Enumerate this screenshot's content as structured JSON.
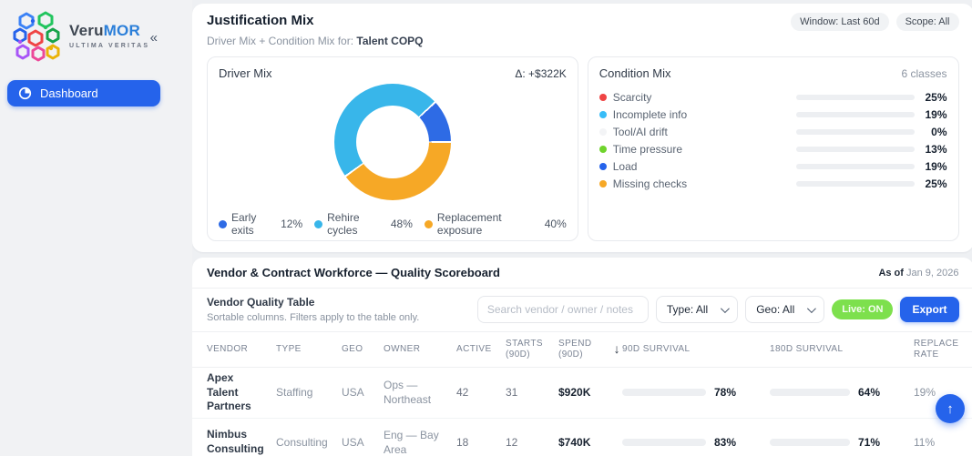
{
  "icons": {
    "collapse": "«",
    "sort_desc": "↓",
    "scroll_top": "↑"
  },
  "sidebar": {
    "brand": {
      "name_primary": "Veru",
      "name_accent": "MOR",
      "tagline": "ULTIMA VERITAS"
    },
    "nav": [
      {
        "label": "Dashboard",
        "active": true
      }
    ]
  },
  "justification": {
    "title": "Justification Mix",
    "subtitle_prefix": "Driver Mix + Condition Mix for: ",
    "subtitle_strong": "Talent COPQ",
    "window_badge": "Window: Last 60d",
    "scope_badge": "Scope: All"
  },
  "driver_mix": {
    "title": "Driver Mix",
    "delta_label": "Δ: +$322K",
    "segments": [
      {
        "label": "Early exits",
        "pct_label": "12%",
        "value": 12,
        "color": "#2e6be5"
      },
      {
        "label": "Rehire cycles",
        "pct_label": "48%",
        "value": 48,
        "color": "#38b6ea"
      },
      {
        "label": "Replacement exposure",
        "pct_label": "40%",
        "value": 40,
        "color": "#f6a826"
      }
    ]
  },
  "condition_mix": {
    "title": "Condition Mix",
    "count_label": "6 classes",
    "rows": [
      {
        "label": "Scarcity",
        "value": 25,
        "pct_label": "25%",
        "color": "#ef4444"
      },
      {
        "label": "Incomplete info",
        "value": 19,
        "pct_label": "19%",
        "color": "#38bdf8"
      },
      {
        "label": "Tool/AI drift",
        "value": 0,
        "pct_label": "0%",
        "color": "#f3f4f6"
      },
      {
        "label": "Time pressure",
        "value": 13,
        "pct_label": "13%",
        "color": "#6fd42c"
      },
      {
        "label": "Load",
        "value": 19,
        "pct_label": "19%",
        "color": "#2563eb"
      },
      {
        "label": "Missing checks",
        "value": 25,
        "pct_label": "25%",
        "color": "#f6a826"
      }
    ]
  },
  "scoreboard": {
    "title": "Vendor & Contract Workforce — Quality Scoreboard",
    "asof_prefix": "As of",
    "asof_date": " Jan 9, 2026",
    "table_title": "Vendor Quality Table",
    "table_subtitle": "Sortable columns. Filters apply to the table only.",
    "search_placeholder": "Search vendor / owner / notes",
    "type_filter": "Type: All",
    "geo_filter": "Geo: All",
    "live_label": "Live: ON",
    "export_label": "Export",
    "survival90_color": "#7ed321",
    "survival180_color": "#3cb9f0",
    "columns": [
      "VENDOR",
      "TYPE",
      "GEO",
      "OWNER",
      "ACTIVE",
      "STARTS (90D)",
      "SPEND (90D)",
      "90D SURVIVAL",
      "180D SURVIVAL",
      "REPLACE RATE"
    ],
    "rows": [
      {
        "vendor": "Apex Talent Partners",
        "type": "Staffing",
        "geo": "USA",
        "owner": "Ops — Northeast",
        "active": "42",
        "starts": "31",
        "spend": "$920K",
        "survival90": 78,
        "survival90_label": "78%",
        "survival180": 64,
        "survival180_label": "64%",
        "replace": "19%"
      },
      {
        "vendor": "Nimbus Consulting",
        "type": "Consulting",
        "geo": "USA",
        "owner": "Eng — Bay Area",
        "active": "18",
        "starts": "12",
        "spend": "$740K",
        "survival90": 83,
        "survival90_label": "83%",
        "survival180": 71,
        "survival180_label": "71%",
        "replace": "11%"
      }
    ]
  },
  "chart_data": [
    {
      "type": "pie",
      "title": "Driver Mix",
      "annotation": "Δ: +$322K",
      "labels": [
        "Early exits",
        "Rehire cycles",
        "Replacement exposure"
      ],
      "values": [
        12,
        48,
        40
      ],
      "unit": "%",
      "legend_position": "bottom"
    },
    {
      "type": "bar",
      "orientation": "horizontal",
      "title": "Condition Mix",
      "subtitle": "6 classes",
      "categories": [
        "Scarcity",
        "Incomplete info",
        "Tool/AI drift",
        "Time pressure",
        "Load",
        "Missing checks"
      ],
      "values": [
        25,
        19,
        0,
        13,
        19,
        25
      ],
      "unit": "%",
      "xlim": [
        0,
        100
      ],
      "grid": false
    },
    {
      "type": "table",
      "title": "Vendor Quality Table",
      "columns": [
        "VENDOR",
        "TYPE",
        "GEO",
        "OWNER",
        "ACTIVE",
        "STARTS (90D)",
        "SPEND (90D)",
        "90D SURVIVAL",
        "180D SURVIVAL",
        "REPLACE RATE"
      ],
      "rows": [
        [
          "Apex Talent Partners",
          "Staffing",
          "USA",
          "Ops — Northeast",
          42,
          31,
          "$920K",
          "78%",
          "64%",
          "19%"
        ],
        [
          "Nimbus Consulting",
          "Consulting",
          "USA",
          "Eng — Bay Area",
          18,
          12,
          "$740K",
          "83%",
          "71%",
          "11%"
        ]
      ]
    }
  ]
}
